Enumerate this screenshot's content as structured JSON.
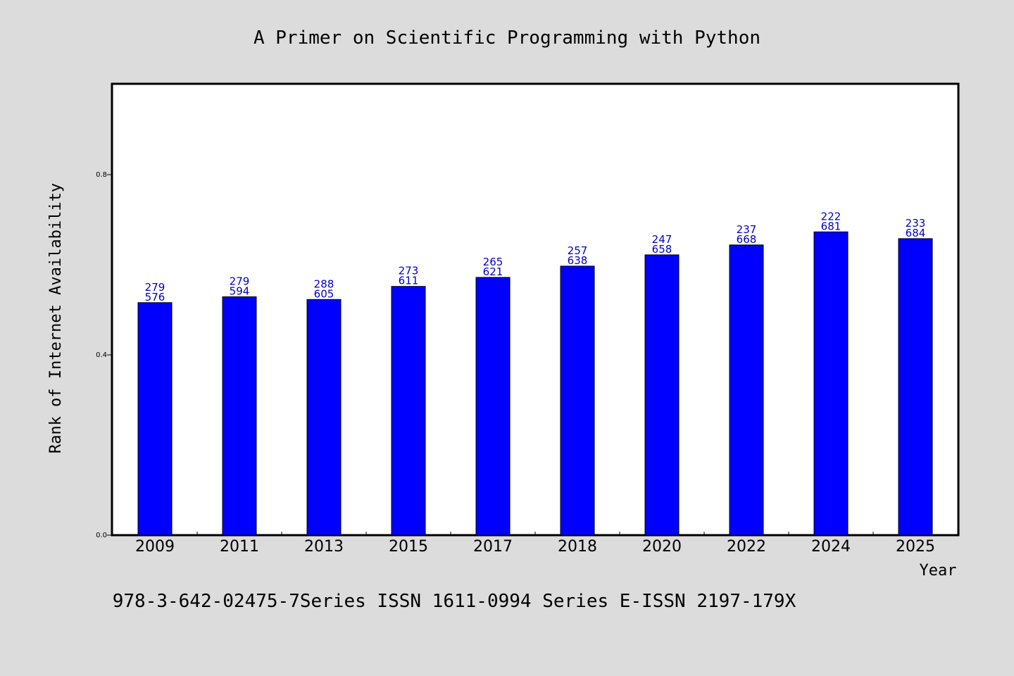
{
  "chart_data": {
    "type": "bar",
    "title": "A Primer on Scientific Programming with Python",
    "xlabel": "Year",
    "ylabel": "Rank of Internet Availability",
    "categories": [
      "2009",
      "2011",
      "2013",
      "2015",
      "2017",
      "2018",
      "2020",
      "2022",
      "2024",
      "2025"
    ],
    "values": [
      0.516,
      0.529,
      0.523,
      0.552,
      0.572,
      0.597,
      0.622,
      0.644,
      0.673,
      0.658
    ],
    "labels_top": [
      "279",
      "279",
      "288",
      "273",
      "265",
      "257",
      "247",
      "237",
      "222",
      "233"
    ],
    "labels_bottom": [
      "576",
      "594",
      "605",
      "611",
      "621",
      "638",
      "658",
      "668",
      "681",
      "684"
    ],
    "yticks": [
      "0.0",
      "0.4",
      "0.8"
    ],
    "ylim": [
      0,
      1.0
    ],
    "grid": false,
    "bar_color": "#0000ff",
    "label_color": "#0000cc",
    "background_color": "#dcdcdc",
    "plot_background": "#ffffff"
  },
  "footer": {
    "text": "978-3-642-02475-7Series ISSN 1611-0994 Series E-ISSN 2197-179X"
  }
}
